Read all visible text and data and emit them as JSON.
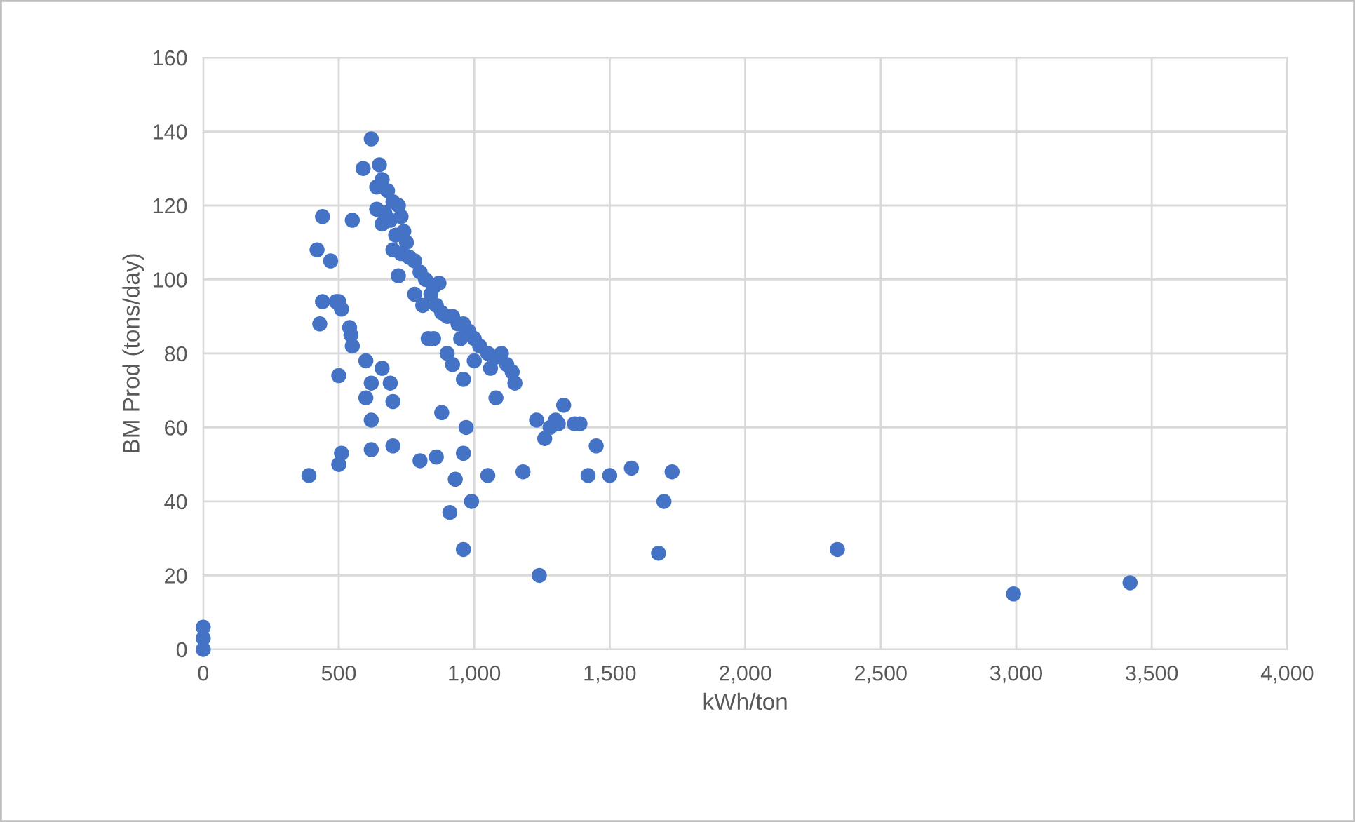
{
  "chart_data": {
    "type": "scatter",
    "xlabel": "kWh/ton",
    "ylabel": "BM Prod (tons/day)",
    "xlim": [
      0,
      4000
    ],
    "xticks": [
      {
        "value": 0,
        "label": "0"
      },
      {
        "value": 500,
        "label": "500"
      },
      {
        "value": 1000,
        "label": "1,000"
      },
      {
        "value": 1500,
        "label": "1,500"
      },
      {
        "value": 2000,
        "label": "2,000"
      },
      {
        "value": 2500,
        "label": "2,500"
      },
      {
        "value": 3000,
        "label": "3,000"
      },
      {
        "value": 3500,
        "label": "3,500"
      },
      {
        "value": 4000,
        "label": "4,000"
      }
    ],
    "ylim": [
      0,
      160
    ],
    "yticks": [
      0,
      20,
      40,
      60,
      80,
      100,
      120,
      140,
      160
    ],
    "grid": true,
    "marker": "circle",
    "series": [
      {
        "color": "#4472c4",
        "x": [
          620,
          590,
          650,
          640,
          660,
          680,
          700,
          670,
          690,
          720,
          730,
          710,
          740,
          750,
          730,
          760,
          780,
          720,
          800,
          820,
          850,
          870,
          840,
          860,
          880,
          900,
          920,
          940,
          960,
          980,
          950,
          1000,
          1020,
          1050,
          1080,
          1100,
          1120,
          1140,
          1150,
          1060,
          1000,
          900,
          920,
          960,
          1080,
          830,
          850,
          640,
          660,
          700,
          780,
          810,
          420,
          440,
          470,
          550,
          440,
          490,
          510,
          430,
          500,
          540,
          545,
          550,
          600,
          660,
          620,
          600,
          690,
          700,
          620,
          500,
          510,
          500,
          390,
          620,
          700,
          800,
          860,
          880,
          910,
          930,
          960,
          970,
          990,
          960,
          1050,
          1180,
          1240,
          1230,
          1260,
          1280,
          1300,
          1330,
          1310,
          1370,
          1390,
          1420,
          1450,
          1500,
          1580,
          1680,
          1700,
          1730,
          2340,
          2990,
          3420,
          0,
          0,
          0
        ],
        "values": [
          138,
          130,
          131,
          125,
          127,
          124,
          121,
          118,
          116,
          120,
          117,
          112,
          113,
          110,
          107,
          106,
          105,
          101,
          102,
          100,
          98,
          99,
          96,
          93,
          91,
          90,
          90,
          88,
          88,
          86,
          84,
          84,
          82,
          80,
          79,
          80,
          77,
          75,
          72,
          76,
          78,
          80,
          77,
          73,
          68,
          84,
          84,
          119,
          115,
          108,
          96,
          93,
          108,
          117,
          105,
          116,
          94,
          94,
          92,
          88,
          94,
          87,
          85,
          82,
          78,
          76,
          72,
          68,
          72,
          67,
          62,
          74,
          53,
          50,
          47,
          54,
          55,
          51,
          52,
          64,
          37,
          46,
          53,
          60,
          40,
          27,
          47,
          48,
          20,
          62,
          57,
          60,
          62,
          66,
          61,
          61,
          61,
          47,
          55,
          47,
          49,
          26,
          40,
          48,
          27,
          15,
          18,
          0,
          3,
          6
        ]
      }
    ]
  }
}
